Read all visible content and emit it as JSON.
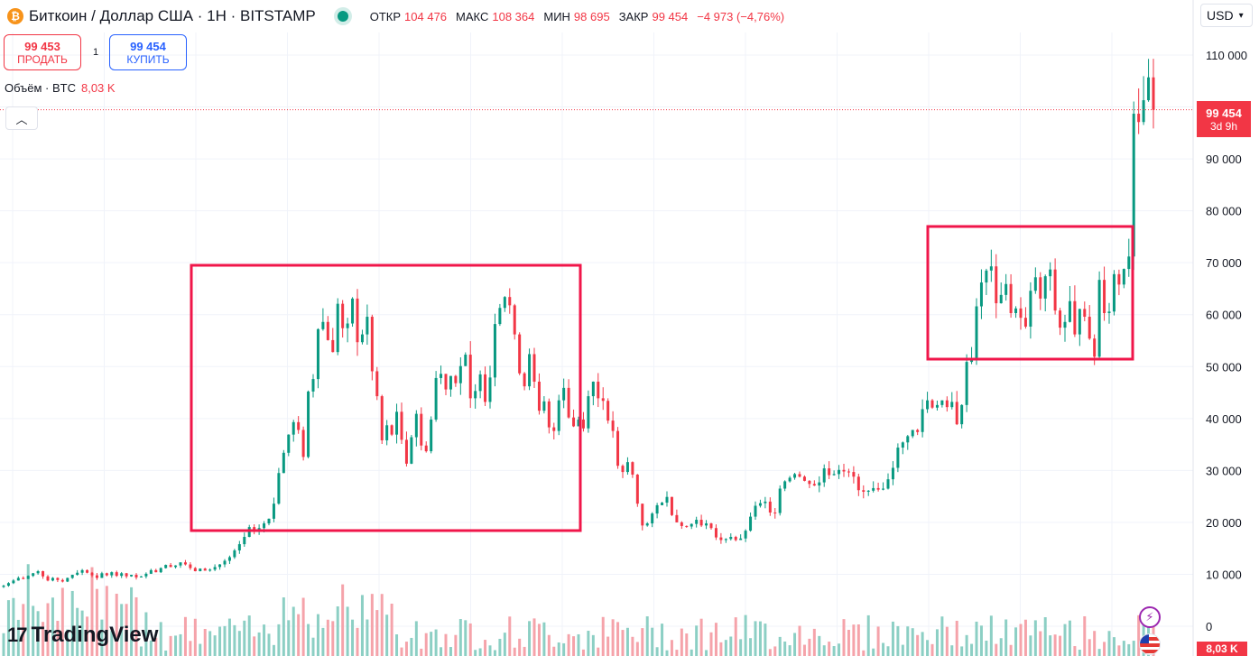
{
  "header": {
    "coin_icon": "bitcoin-icon",
    "title": "Биткоин / Доллар США · 1Н · BITSTAMP",
    "ohlc": {
      "open_label": "ОТКР",
      "open": "104 476",
      "high_label": "МАКС",
      "high": "108 364",
      "low_label": "МИН",
      "low": "98 695",
      "close_label": "ЗАКР",
      "close": "99 454",
      "change": "−4 973 (−4,76%)"
    }
  },
  "trade": {
    "sell_price": "99 453",
    "sell_label": "ПРОДАТЬ",
    "spread": "1",
    "buy_price": "99 454",
    "buy_label": "КУПИТЬ"
  },
  "volume_legend": {
    "label": "Объём · BTC",
    "value": "8,03 K"
  },
  "currency": "USD",
  "last_price": {
    "price": "99 454",
    "countdown": "3d 9h"
  },
  "volume_badge": "8,03 K",
  "logo_text": "TradingView",
  "colors": {
    "up": "#089981",
    "down": "#f23645",
    "up_vol": "#8ccfc4",
    "down_vol": "#f5a3aa",
    "highlight": "#f0164a"
  },
  "chart_data": {
    "type": "candlestick",
    "y_ticks": [
      "110 000",
      "100 000",
      "90 000",
      "80 000",
      "70 000",
      "60 000",
      "50 000",
      "40 000",
      "30 000",
      "20 000",
      "10 000",
      "0"
    ],
    "ylim": [
      0,
      112000
    ],
    "last_price": 99454,
    "closes": [
      7800,
      8300,
      8800,
      9300,
      9100,
      9700,
      10200,
      10600,
      9600,
      8800,
      9300,
      8900,
      8600,
      9300,
      9900,
      10300,
      10800,
      10300,
      9800,
      9300,
      10200,
      9800,
      10400,
      9700,
      10200,
      9600,
      9900,
      9400,
      9600,
      10100,
      10800,
      10400,
      11200,
      11800,
      11400,
      11700,
      12300,
      11900,
      11200,
      10600,
      11100,
      10700,
      10900,
      11400,
      11900,
      12600,
      13300,
      14600,
      15800,
      17200,
      19100,
      18300,
      18900,
      19800,
      20700,
      23600,
      29500,
      33400,
      36900,
      39300,
      37800,
      32600,
      45200,
      47600,
      57200,
      58600,
      55100,
      52800,
      62100,
      57400,
      58300,
      63100,
      54700,
      56200,
      59600,
      49100,
      44300,
      35800,
      38700,
      36900,
      41300,
      35900,
      31300,
      36400,
      40900,
      34800,
      33700,
      39800,
      47800,
      48600,
      45600,
      48200,
      46800,
      50100,
      52300,
      43900,
      45300,
      48500,
      43200,
      47900,
      58200,
      61300,
      63400,
      61800,
      56200,
      48700,
      46200,
      52400,
      47100,
      41500,
      43300,
      38300,
      37600,
      43500,
      45900,
      40200,
      38500,
      39800,
      38100,
      44300,
      47100,
      43900,
      43400,
      39600,
      37600,
      30900,
      29700,
      31600,
      29200,
      23600,
      19400,
      19800,
      21700,
      23300,
      23800,
      24900,
      21400,
      20000,
      19300,
      19200,
      19700,
      20500,
      19400,
      19800,
      18900,
      17100,
      16600,
      16800,
      17200,
      16600,
      16900,
      18400,
      21100,
      23200,
      23700,
      24000,
      21900,
      21800,
      26500,
      27900,
      28600,
      29300,
      28800,
      28000,
      27400,
      27100,
      27700,
      30400,
      29100,
      29300,
      30100,
      29800,
      29700,
      28800,
      26200,
      25900,
      26100,
      26600,
      26300,
      26500,
      28300,
      30500,
      34400,
      35400,
      36600,
      37800,
      37400,
      41800,
      43500,
      42100,
      42600,
      43500,
      42200,
      43200,
      38900,
      42600,
      50900,
      51400,
      61600,
      66200,
      68500,
      69300,
      62200,
      63800,
      65900,
      60300,
      61200,
      59400,
      57700,
      64600,
      67200,
      63100,
      67400,
      68700,
      60800,
      57500,
      58600,
      62600,
      56200,
      61100,
      59600,
      55400,
      51900,
      66700,
      60300,
      60600,
      67800,
      65800,
      68800,
      71200,
      98700,
      97100,
      101300,
      105700,
      99454
    ],
    "volume_axis_max": 10000
  }
}
